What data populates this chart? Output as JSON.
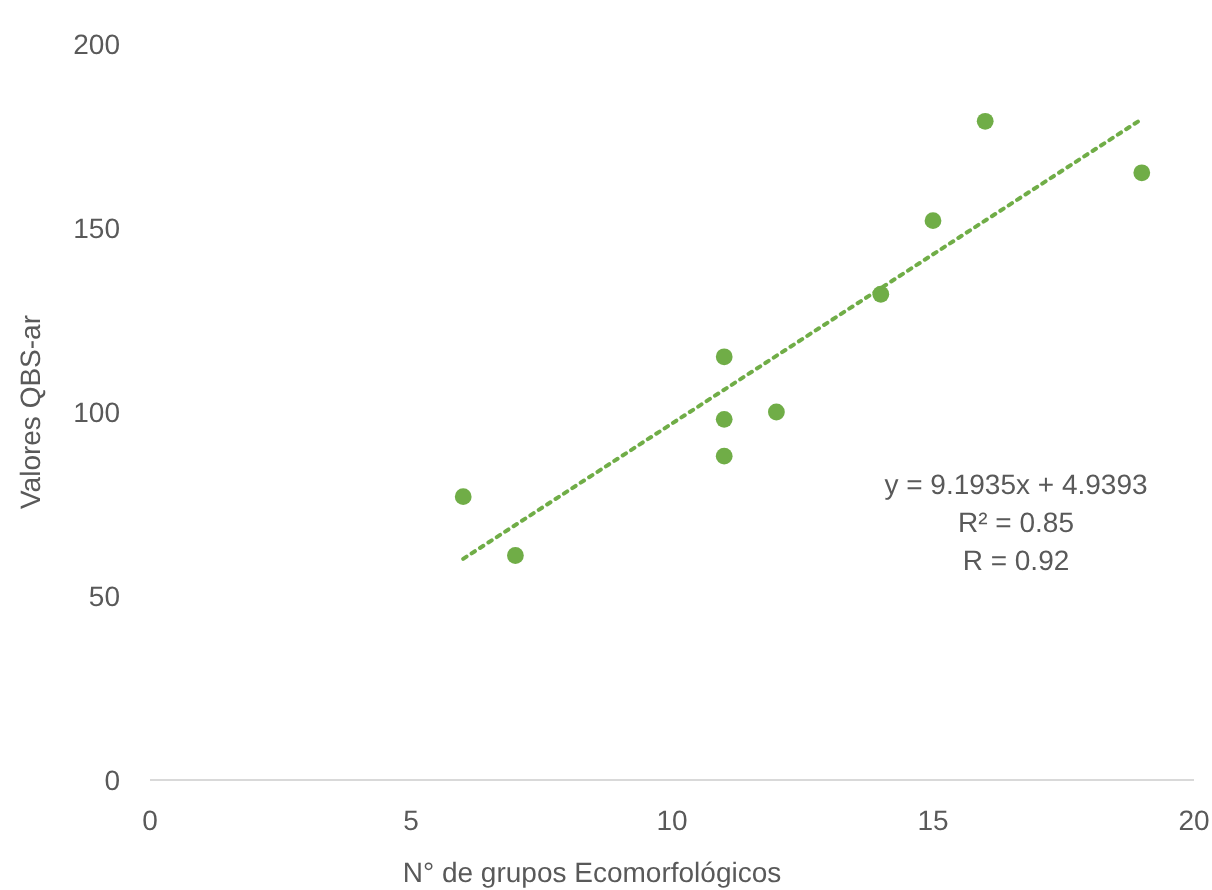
{
  "chart_data": {
    "type": "scatter",
    "xlabel": "N° de grupos Ecomorfológicos",
    "ylabel": "Valores QBS-ar",
    "xlim": [
      0,
      20
    ],
    "xticks": [
      0,
      5,
      10,
      15,
      20
    ],
    "ylim": [
      0,
      200
    ],
    "yticks": [
      0,
      50,
      100,
      150,
      200
    ],
    "grid": false,
    "series": [
      {
        "color": "#70ad47",
        "marker": "circle",
        "x": [
          6,
          7,
          11,
          11,
          11,
          12,
          14,
          15,
          16,
          19
        ],
        "values": [
          77,
          61,
          115,
          98,
          88,
          100,
          132,
          152,
          179,
          165
        ]
      },
      {
        "type": "line",
        "color": "#70ad47",
        "marker": "none",
        "line_style": "dotted",
        "x": [
          6,
          19
        ],
        "values": [
          60.1,
          179.6
        ]
      }
    ],
    "annotations": [
      "y = 9.1935x + 4.9393",
      "R² = 0.85",
      "R = 0.92"
    ]
  }
}
